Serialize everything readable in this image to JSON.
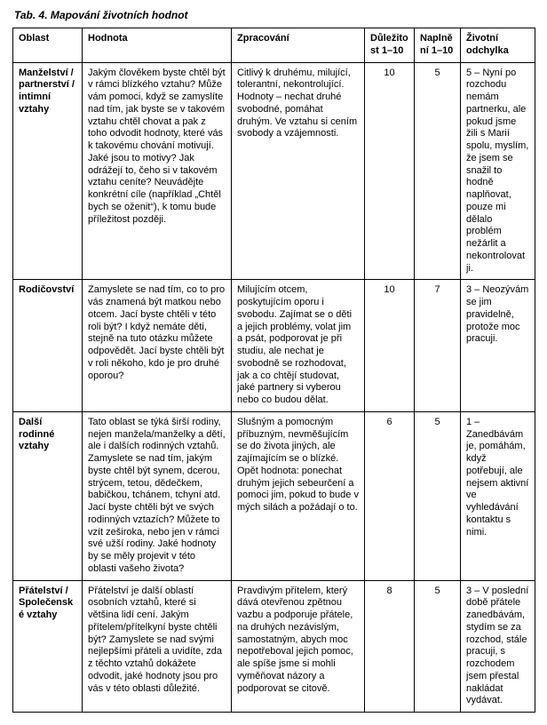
{
  "caption": "Tab. 4. Mapování životních hodnot",
  "columns": {
    "oblast": "Oblast",
    "hodnota": "Hodnota",
    "zpracovani": "Zpracování",
    "dulezitost": "Důležitost 1–10",
    "naplneni": "Naplnění 1–10",
    "odchylka": "Životní odchylka"
  },
  "rows": [
    {
      "oblast": "Manželství / partnerství / intimní vztahy",
      "hodnota": "Jakým člověkem byste chtěl být v rámci blízkého vztahu? Může vám pomoci, když se zamyslíte nad tím, jak byste se v takovém vztahu chtěl chovat a pak z toho odvodit hodnoty, které vás k takovému chování motivují. Jaké jsou to motivy? Jak odrážejí to, čeho si v takovém vztahu ceníte? Neuvádějte konkrétní cíle (například „Chtěl bych se oženit“), k tomu bude příležitost později.",
      "zpracovani": "Citlivý k druhému, milující, tolerantní, nekontrolující. Hodnoty – nechat druhé svobodné, pomáhat druhým. Ve vztahu si cením svobody a vzájemnosti.",
      "dulezitost": "10",
      "naplneni": "5",
      "odchylka": "5 – Nyní po rozchodu nemám partnerku, ale pokud jsme žili s Marií spolu, myslím, že jsem se snažil to hodně naplňovat, pouze mi dělalo problém nežárlit a nekontrolovat ji."
    },
    {
      "oblast": "Rodičovství",
      "hodnota": "Zamyslete se nad tím, co to pro vás znamená být matkou nebo otcem. Jací byste chtěli v této roli být? I když nemáte děti, stejně na tuto otázku můžete odpovědět. Jací byste chtěli být v roli někoho, kdo je pro druhé oporou?",
      "zpracovani": "Milujícím otcem, poskytujícím oporu i svobodu. Zajímat se o děti a jejich problémy, volat jim a psát, podporovat je při studiu, ale nechat je svobodně se rozhodovat, jak a co chtějí studovat, jaké partnery si vyberou nebo co budou dělat.",
      "dulezitost": "10",
      "naplneni": "7",
      "odchylka": "3 – Neozývám se jim pravidelně, protože moc pracuji."
    },
    {
      "oblast": "Další rodinné vztahy",
      "hodnota": "Tato oblast se týká širší rodiny, nejen manžela/manželky a dětí, ale i dalších rodinných vztahů. Zamyslete se nad tím, jakým byste chtěl být synem, dcerou, strýcem, tetou, dědečkem, babičkou, tchánem, tchyní atd. Jací byste chtěli být ve svých rodinných vztazích? Můžete to vzít zeširoka, nebo jen v rámci své užší rodiny. Jaké hodnoty by se měly projevit v této oblasti vašeho života?",
      "zpracovani": "Slušným a pomocným příbuzným, nevměšujícím se do života jiných, ale zajímajícím se o blízké. Opět hodnota: ponechat druhým jejich sebeurčení a pomoci jim, pokud to bude v mých silách a požádají o to.",
      "dulezitost": "6",
      "naplneni": "5",
      "odchylka": "1 – Zanedbávám je, pomáhám, když potřebují, ale nejsem aktivní ve vyhledávání kontaktu s nimi."
    },
    {
      "oblast": "Přátelství / Společenské vztahy",
      "hodnota": "Přátelství je další oblastí osobních vztahů, které si většina lidí cení. Jakým přítelem/přítelkyní byste chtěli být? Zamyslete se nad svými nejlepšími přáteli a uvidíte, zda z těchto vztahů dokážete odvodit, jaké hodnoty jsou pro vás v této oblasti důležité.",
      "zpracovani": "Pravdivým přítelem, který dává otevřenou zpětnou vazbu a podporuje přátele, na druhých nezávislým, samostatným, abych moc nepotřeboval jejich pomoc, ale spíše jsme si mohli vyměňovat názory a podporovat se citově.",
      "dulezitost": "8",
      "naplneni": "5",
      "odchylka": "3 – V poslední době přátele zanedbávám, stydím se za rozchod, stále pracuji, s rozchodem jsem přestal nakládat vydávat."
    }
  ]
}
